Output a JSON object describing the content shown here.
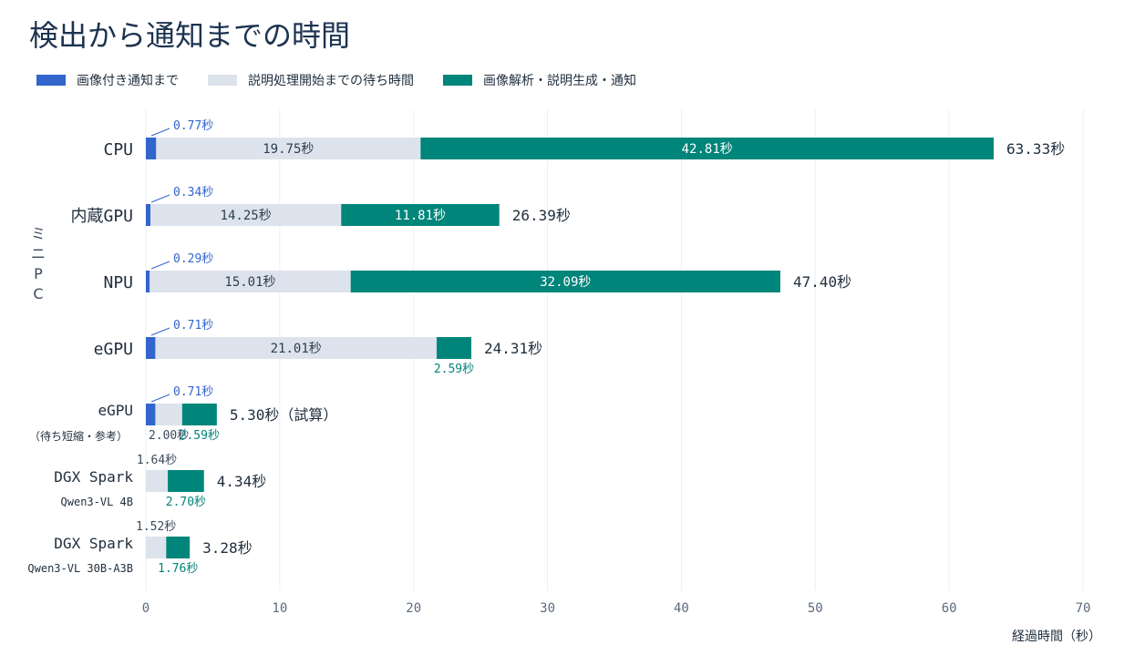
{
  "page": {
    "title": "検出から通知までの時間"
  },
  "legend": [
    {
      "label": "画像付き通知まで",
      "color": "#3366cc"
    },
    {
      "label": "説明処理開始までの待ち時間",
      "color": "#dde3ec"
    },
    {
      "label": "画像解析・説明生成・通知",
      "color": "#00857a"
    }
  ],
  "chart_data": {
    "type": "bar",
    "orientation": "horizontal",
    "stacked": true,
    "xlabel": "経過時間（秒）",
    "xlim": [
      0,
      70
    ],
    "xticks": [
      "0",
      "10",
      "20",
      "30",
      "40",
      "50",
      "60",
      "70"
    ],
    "group_label": "ミニPC",
    "grid": true,
    "legend_position": "top-left",
    "unit_suffix": "秒",
    "categories": [
      {
        "label": "CPU",
        "sublabel": "",
        "group": "ミニPC"
      },
      {
        "label": "内蔵GPU",
        "sublabel": "",
        "group": "ミニPC"
      },
      {
        "label": "NPU",
        "sublabel": "",
        "group": "ミニPC"
      },
      {
        "label": "eGPU",
        "sublabel": "",
        "group": "ミニPC"
      },
      {
        "label": "eGPU",
        "sublabel": "（待ち短縮・参考）",
        "group": ""
      },
      {
        "label": "DGX Spark",
        "sublabel": "Qwen3-VL 4B",
        "group": ""
      },
      {
        "label": "DGX Spark",
        "sublabel": "Qwen3-VL 30B-A3B",
        "group": ""
      }
    ],
    "series": [
      {
        "name": "画像付き通知まで",
        "values": [
          0.77,
          0.34,
          0.29,
          0.71,
          0.71,
          null,
          null
        ]
      },
      {
        "name": "説明処理開始までの待ち時間",
        "values": [
          19.75,
          14.25,
          15.01,
          21.01,
          2.0,
          1.64,
          1.52
        ]
      },
      {
        "name": "画像解析・説明生成・通知",
        "values": [
          42.81,
          11.81,
          32.09,
          2.59,
          2.59,
          2.7,
          1.76
        ]
      }
    ],
    "totals": [
      63.33,
      26.39,
      47.4,
      24.31,
      5.3,
      4.34,
      3.28
    ],
    "total_labels": [
      "63.33秒",
      "26.39秒",
      "47.40秒",
      "24.31秒",
      "5.30秒（試算）",
      "4.34秒",
      "3.28秒"
    ]
  }
}
